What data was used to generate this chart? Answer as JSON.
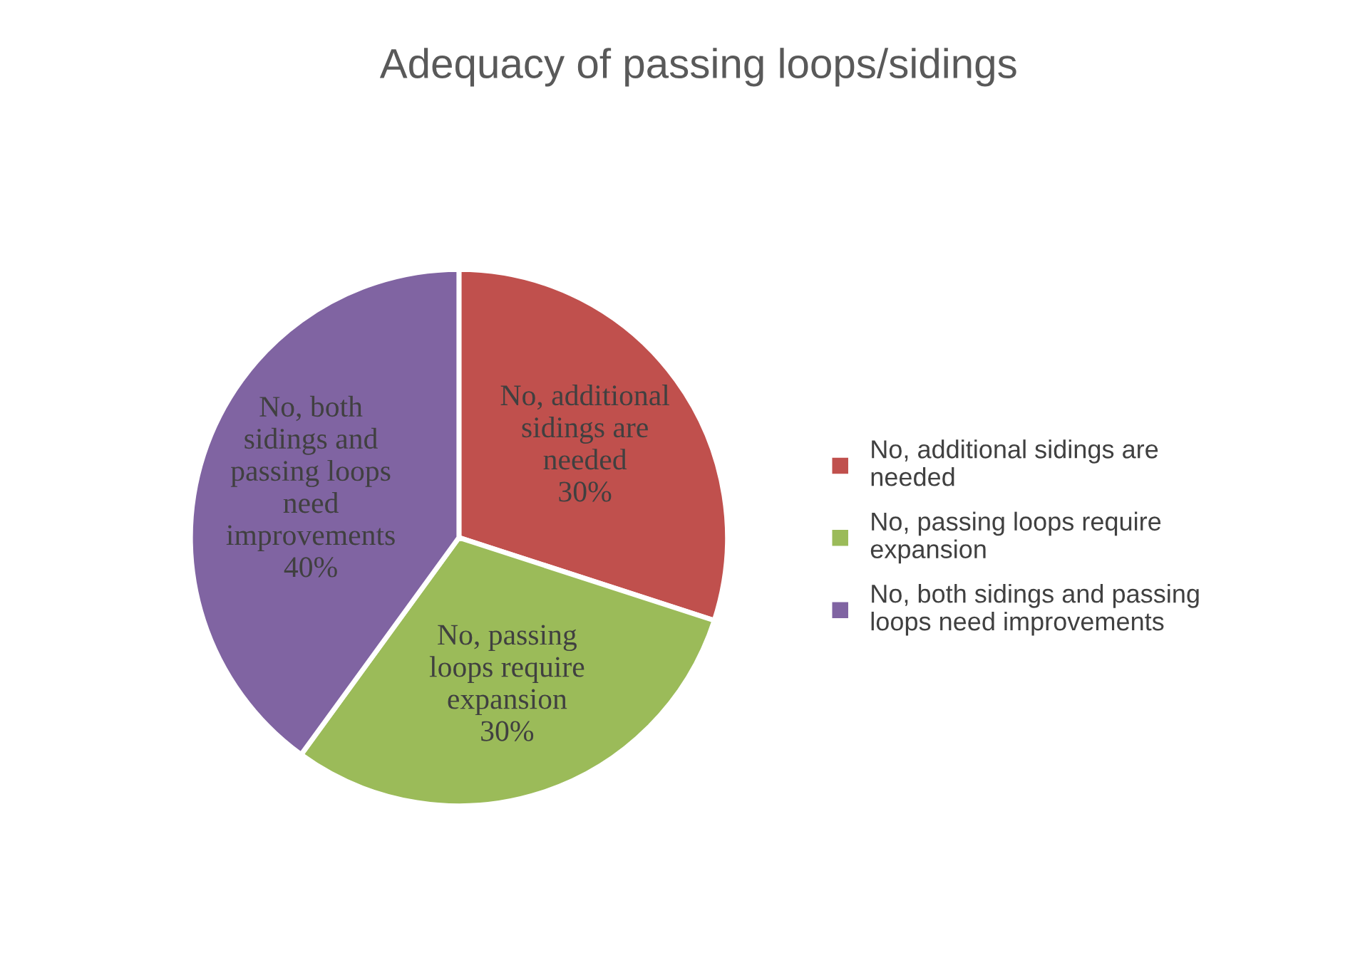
{
  "chart_data": {
    "type": "pie",
    "title": "Adequacy of passing loops/sidings",
    "categories": [
      "No, additional sidings are needed",
      "No, passing loops require expansion",
      "No, both sidings and passing loops need improvements"
    ],
    "values": [
      30,
      30,
      40
    ],
    "colors": [
      "#c0504d",
      "#9bbb59",
      "#8064a2"
    ],
    "value_labels": [
      "30%",
      "30%",
      "40%"
    ],
    "legend": "right"
  }
}
